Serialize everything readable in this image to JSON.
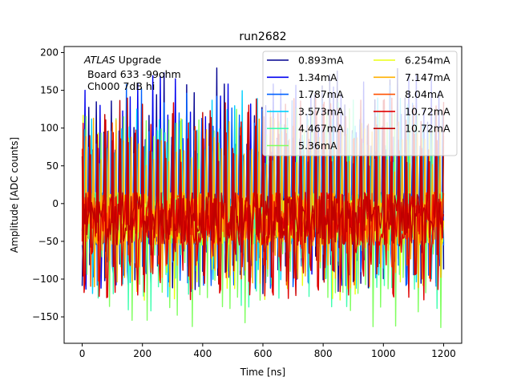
{
  "chart_data": {
    "type": "line",
    "title": "run2682",
    "xlabel": "Time [ns]",
    "ylabel": "Amplitude [ADC counts]",
    "xlim": [
      -60,
      1260
    ],
    "ylim": [
      -185,
      208
    ],
    "xticks": [
      0,
      200,
      400,
      600,
      800,
      1000,
      1200
    ],
    "yticks": [
      -150,
      -100,
      -50,
      0,
      50,
      100,
      150,
      200
    ],
    "xtick_labels": [
      "0",
      "200",
      "400",
      "600",
      "800",
      "1000",
      "1200"
    ],
    "ytick_labels": [
      "−150",
      "−100",
      "−50",
      "0",
      "50",
      "100",
      "150",
      "200"
    ],
    "x_start": 0,
    "x_step": 3.125,
    "n_points": 385,
    "pulse_period": 25,
    "annotation": {
      "italic_part": "ATLAS",
      "line1_rest": " Upgrade",
      "line2": "Board 633 -99ohm",
      "line3": "Ch000 7dB hi"
    },
    "legend_position": "upper-right",
    "legend_columns": 2,
    "series": [
      {
        "name": "0.893mA",
        "color": "#00008f",
        "peak": 180,
        "trough": -120
      },
      {
        "name": "1.34mA",
        "color": "#0000f0",
        "peak": 175,
        "trough": -118
      },
      {
        "name": "1.787mA",
        "color": "#0060ff",
        "peak": 160,
        "trough": -115
      },
      {
        "name": "3.573mA",
        "color": "#00d0ff",
        "peak": 150,
        "trough": -125
      },
      {
        "name": "4.467mA",
        "color": "#40ffb0",
        "peak": 140,
        "trough": -145
      },
      {
        "name": "5.36mA",
        "color": "#80ff60",
        "peak": 130,
        "trough": -168
      },
      {
        "name": "6.254mA",
        "color": "#ebff10",
        "peak": 120,
        "trough": -130
      },
      {
        "name": "7.147mA",
        "color": "#ffb000",
        "peak": 120,
        "trough": -115
      },
      {
        "name": "8.04mA",
        "color": "#ff5000",
        "peak": 125,
        "trough": -110
      },
      {
        "name": "10.72mA",
        "color": "#e00000",
        "peak": 140,
        "trough": -128
      },
      {
        "name": "10.72mA",
        "color": "#c00000",
        "peak": 150,
        "trough": -110
      }
    ]
  }
}
